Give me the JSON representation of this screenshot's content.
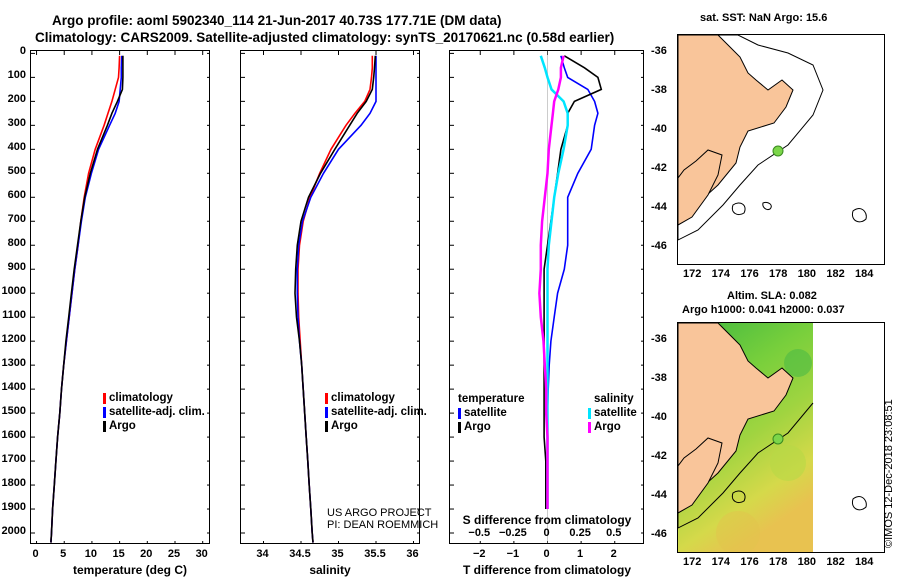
{
  "title_line1": "Argo profile: aoml 5902340_114 21-Jun-2017 40.73S 177.71E (DM data)",
  "title_line2": "Climatology: CARS2009. Satellite-adjusted climatology: synTS_20170621.nc (0.58d earlier)",
  "depth_ticks": [
    "0",
    "100",
    "200",
    "300",
    "400",
    "500",
    "600",
    "700",
    "800",
    "900",
    "1000",
    "1100",
    "1200",
    "1300",
    "1400",
    "1500",
    "1600",
    "1700",
    "1800",
    "1900",
    "2000"
  ],
  "colors": {
    "climatology": "#ff0000",
    "satellite": "#0000ff",
    "argo": "#000000",
    "salinity_sat": "#00e5ff",
    "salinity_argo": "#ff00ff",
    "land": "#f9c59a"
  },
  "chart_data": [
    {
      "type": "line",
      "name": "temperature",
      "xlabel": "temperature (deg C)",
      "xlim": [
        -1,
        31.5
      ],
      "ylim": [
        2050,
        -10
      ],
      "xticks": [
        0,
        5,
        10,
        15,
        20,
        25,
        30
      ],
      "xtick_labels": [
        "0",
        "5",
        "10",
        "15",
        "20",
        "25",
        "30"
      ],
      "depth": [
        10,
        60,
        100,
        150,
        200,
        250,
        300,
        400,
        500,
        600,
        700,
        800,
        900,
        1000,
        1100,
        1200,
        1300,
        1400,
        1500,
        1600,
        1700,
        1800,
        1900,
        2000,
        2040
      ],
      "series": [
        {
          "name": "climatology",
          "values": [
            15.0,
            14.9,
            14.8,
            14.2,
            13.6,
            12.9,
            12.2,
            10.6,
            9.4,
            8.6,
            8.0,
            7.5,
            6.9,
            6.4,
            5.9,
            5.4,
            4.9,
            4.5,
            4.2,
            3.8,
            3.5,
            3.2,
            2.9,
            2.7,
            2.6
          ]
        },
        {
          "name": "satellite-adj. clim.",
          "values": [
            15.4,
            15.3,
            15.3,
            15.1,
            14.9,
            14.2,
            13.2,
            11.2,
            9.9,
            8.8,
            8.1,
            7.5,
            6.9,
            6.4,
            5.9,
            5.4,
            4.9,
            4.5,
            4.2,
            3.8,
            3.5,
            3.2,
            2.9,
            2.7,
            2.6
          ]
        },
        {
          "name": "Argo",
          "values": [
            15.6,
            15.6,
            15.6,
            15.5,
            14.6,
            13.6,
            12.8,
            11.0,
            9.7,
            8.7,
            8.0,
            7.4,
            6.8,
            6.3,
            5.8,
            5.3,
            4.9,
            4.5,
            4.2,
            3.8,
            3.5,
            3.2,
            2.9,
            2.7,
            2.6
          ]
        }
      ],
      "legend": [
        "climatology",
        "satellite-adj. clim.",
        "Argo"
      ]
    },
    {
      "type": "line",
      "name": "salinity",
      "xlabel": "salinity",
      "xlim": [
        33.7,
        36.1
      ],
      "ylim": [
        2050,
        -10
      ],
      "xticks": [
        34,
        34.5,
        35,
        35.5,
        36
      ],
      "xtick_labels": [
        "34",
        "34.5",
        "35",
        "35.5",
        "36"
      ],
      "depth": [
        10,
        60,
        100,
        150,
        200,
        250,
        300,
        400,
        500,
        600,
        700,
        800,
        900,
        1000,
        1100,
        1200,
        1300,
        1400,
        1500,
        1600,
        1700,
        1800,
        1900,
        2000,
        2040
      ],
      "series": [
        {
          "name": "climatology",
          "values": [
            35.45,
            35.45,
            35.44,
            35.42,
            35.35,
            35.22,
            35.1,
            34.9,
            34.75,
            34.62,
            34.53,
            34.48,
            34.46,
            34.46,
            34.47,
            34.49,
            34.51,
            34.53,
            34.55,
            34.57,
            34.59,
            34.61,
            34.63,
            34.65,
            34.66
          ]
        },
        {
          "name": "satellite-adj. clim.",
          "values": [
            35.5,
            35.5,
            35.5,
            35.5,
            35.5,
            35.42,
            35.3,
            35.0,
            34.8,
            34.63,
            34.52,
            34.47,
            34.45,
            34.45,
            34.46,
            34.48,
            34.51,
            34.53,
            34.55,
            34.57,
            34.59,
            34.61,
            34.63,
            34.65,
            34.66
          ]
        },
        {
          "name": "Argo",
          "values": [
            35.49,
            35.48,
            35.47,
            35.45,
            35.37,
            35.25,
            35.15,
            34.95,
            34.76,
            34.6,
            34.5,
            34.45,
            34.43,
            34.42,
            34.44,
            34.48,
            34.51,
            34.53,
            34.55,
            34.57,
            34.59,
            34.61,
            34.63,
            34.65,
            34.66
          ]
        }
      ],
      "legend": [
        "climatology",
        "satellite-adj. clim.",
        "Argo"
      ],
      "credit": [
        "US ARGO PROJECT",
        "PI: DEAN ROEMMICH"
      ]
    },
    {
      "type": "line",
      "name": "difference",
      "xlabel": "T difference from climatology",
      "xlim": [
        -2.9,
        2.9
      ],
      "ylim": [
        2050,
        -10
      ],
      "xticks": [
        -2,
        -1,
        0,
        1,
        2
      ],
      "xtick_labels": [
        "−2",
        "−1",
        "0",
        "1",
        "2"
      ],
      "secondary_xticks": [
        -0.5,
        -0.25,
        0,
        0.25,
        0.5
      ],
      "secondary_xtick_labels": [
        "−0.5",
        "−0.25",
        "0",
        "0.25",
        "0.5"
      ],
      "secondary_xlabel": "S difference from climatology",
      "depth": [
        10,
        60,
        100,
        150,
        200,
        250,
        300,
        400,
        500,
        600,
        700,
        800,
        900,
        1000,
        1100,
        1200,
        1300,
        1400,
        1500,
        1600,
        1700,
        1800,
        1900
      ],
      "series": [
        {
          "name": "temperature satellite",
          "values": [
            0.4,
            0.5,
            0.6,
            1.2,
            1.4,
            1.5,
            1.4,
            1.3,
            0.9,
            0.6,
            0.6,
            0.6,
            0.5,
            0.3,
            0.2,
            0.1,
            0.05,
            0.02,
            0,
            0,
            0,
            0,
            0
          ]
        },
        {
          "name": "temperature Argo",
          "values": [
            0.5,
            1.1,
            1.5,
            1.6,
            0.8,
            0.6,
            0.6,
            0.4,
            0.3,
            0.2,
            0.1,
            0.0,
            -0.1,
            -0.1,
            -0.1,
            -0.1,
            -0.1,
            -0.1,
            -0.1,
            -0.1,
            -0.05,
            -0.05,
            -0.05
          ]
        },
        {
          "name": "salinity satellite",
          "values": [
            -0.05,
            -0.02,
            0.0,
            0.03,
            0.12,
            0.15,
            0.15,
            0.12,
            0.08,
            0.05,
            0.03,
            0.01,
            0.0,
            0.0,
            0.0,
            0.0,
            0.0,
            0.0,
            0.0,
            0.0,
            0.0,
            0.0,
            0.0
          ]
        },
        {
          "name": "salinity Argo",
          "values": [
            0.12,
            0.1,
            0.1,
            0.08,
            0.05,
            0.04,
            0.03,
            0.01,
            0.0,
            -0.02,
            -0.04,
            -0.05,
            -0.05,
            -0.06,
            -0.05,
            -0.03,
            -0.02,
            -0.01,
            -0.01,
            0.0,
            0.0,
            0.0,
            0.0
          ]
        }
      ],
      "legend_temperature": {
        "header": "temperature",
        "items": [
          "satellite",
          "Argo"
        ]
      },
      "legend_salinity": {
        "header": "salinity",
        "items": [
          "satellite",
          "Argo"
        ]
      }
    }
  ],
  "map_top": {
    "title": "sat. SST: NaN Argo: 15.6",
    "lat_ticks": [
      "-36",
      "-38",
      "-40",
      "-42",
      "-44",
      "-46"
    ],
    "lon_ticks": [
      "172",
      "174",
      "176",
      "178",
      "180",
      "182",
      "184"
    ],
    "argo_position": {
      "lat": -40.73,
      "lon": 177.71
    }
  },
  "map_bottom": {
    "title_line1": "Altim. SLA: 0.082",
    "title_line2": "Argo h1000: 0.041 h2000: 0.037",
    "lat_ticks": [
      "-36",
      "-38",
      "-40",
      "-42",
      "-44",
      "-46"
    ],
    "lon_ticks": [
      "172",
      "174",
      "176",
      "178",
      "180",
      "182",
      "184"
    ],
    "argo_position": {
      "lat": -40.73,
      "lon": 177.71
    }
  },
  "imos_stamp": "©IMOS 12-Dec-2018 23:08:51"
}
